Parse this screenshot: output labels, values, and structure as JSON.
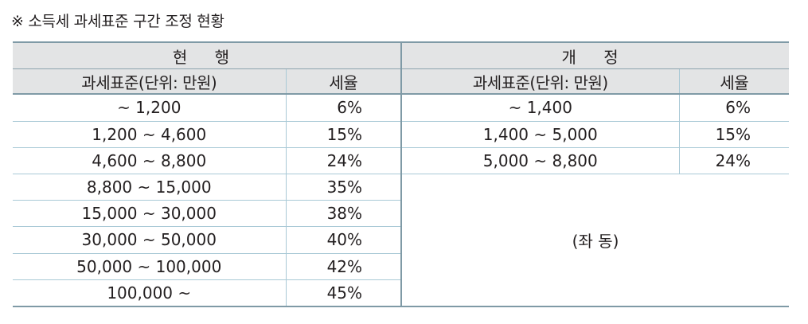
{
  "caption": "※ 소득세 과세표준 구간 조정 현황",
  "headers": {
    "current": "현 행",
    "revised": "개 정",
    "tax_base": "과세표준(단위: 만원)",
    "rate": "세율"
  },
  "current_rows": [
    {
      "range": "~ 1,200",
      "rate": "6%"
    },
    {
      "range": "1,200 ~ 4,600",
      "rate": "15%"
    },
    {
      "range": "4,600 ~ 8,800",
      "rate": "24%"
    },
    {
      "range": "8,800 ~ 15,000",
      "rate": "35%"
    },
    {
      "range": "15,000 ~ 30,000",
      "rate": "38%"
    },
    {
      "range": "30,000 ~ 50,000",
      "rate": "40%"
    },
    {
      "range": "50,000 ~ 100,000",
      "rate": "42%"
    },
    {
      "range": "100,000 ~",
      "rate": "45%"
    }
  ],
  "revised_rows": [
    {
      "range": "~ 1,400",
      "rate": "6%"
    },
    {
      "range": "1,400 ~ 5,000",
      "rate": "15%"
    },
    {
      "range": "5,000 ~ 8,800",
      "rate": "24%"
    }
  ],
  "revised_same_note": "(좌 동)"
}
